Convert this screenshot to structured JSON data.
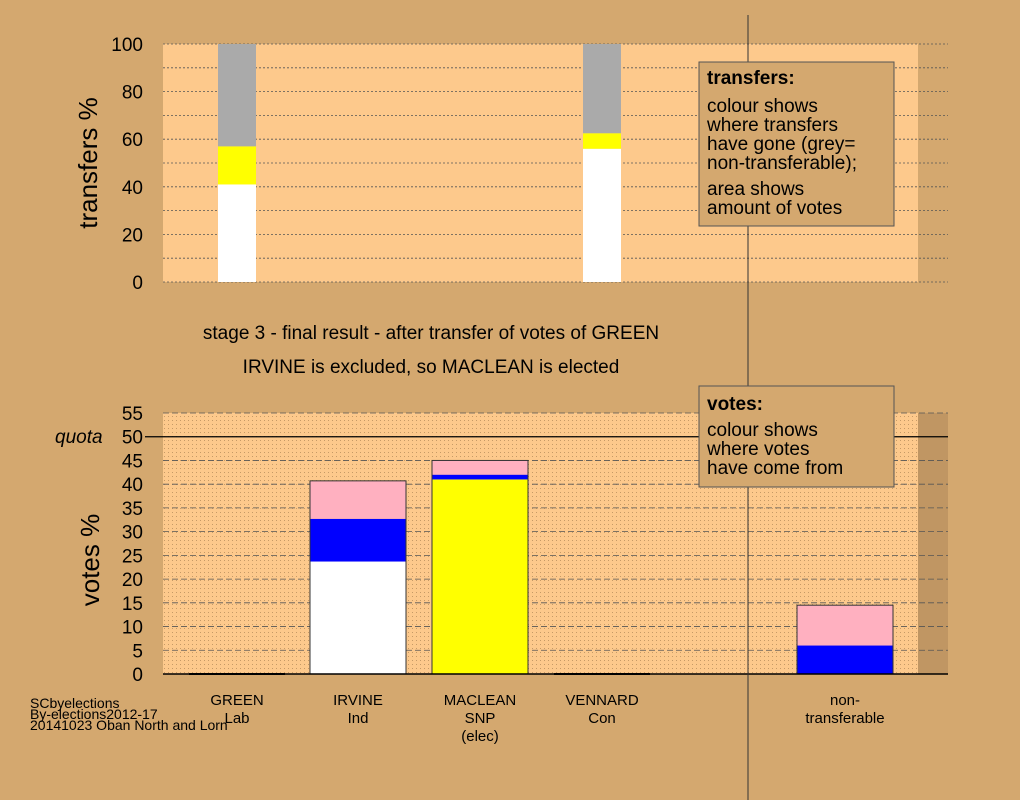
{
  "chart_data": [
    {
      "type": "bar",
      "stacked": true,
      "ylabel": "transfers %",
      "ylim": [
        0,
        100
      ],
      "yticks": [
        0,
        20,
        40,
        60,
        80,
        100
      ],
      "grid": true,
      "bars": [
        {
          "category": "GREEN",
          "segments": [
            {
              "color": "#ffffff",
              "value": 41
            },
            {
              "color": "#ffff00",
              "value": 16
            },
            {
              "color": "#aaaaaa",
              "value": 43
            }
          ]
        },
        {
          "category": "VENNARD",
          "segments": [
            {
              "color": "#ffffff",
              "value": 56
            },
            {
              "color": "#ffff00",
              "value": 6.5
            },
            {
              "color": "#aaaaaa",
              "value": 37.5
            }
          ]
        }
      ]
    },
    {
      "type": "bar",
      "stacked": true,
      "ylabel": "votes %",
      "ylim": [
        0,
        55
      ],
      "yticks": [
        0,
        5,
        10,
        15,
        20,
        25,
        30,
        35,
        40,
        45,
        50,
        55
      ],
      "quota": 50,
      "quota_label": "quota",
      "grid": true,
      "bars": [
        {
          "category": "GREEN",
          "segments": []
        },
        {
          "category": "IRVINE",
          "segments": [
            {
              "color": "#ffffff",
              "value": 23.7
            },
            {
              "color": "#0000ff",
              "value": 9
            },
            {
              "color": "#ffb0c0",
              "value": 8
            }
          ]
        },
        {
          "category": "MACLEAN",
          "segments": [
            {
              "color": "#ffff00",
              "value": 41
            },
            {
              "color": "#0000ff",
              "value": 1
            },
            {
              "color": "#ffb0c0",
              "value": 3
            }
          ]
        },
        {
          "category": "VENNARD",
          "segments": []
        },
        {
          "category": "non-transferable",
          "segments": [
            {
              "color": "#0000ff",
              "value": 6
            },
            {
              "color": "#ffb0c0",
              "value": 8.5
            }
          ]
        }
      ]
    }
  ],
  "categories": [
    {
      "name": "GREEN",
      "lines": [
        "GREEN",
        "Lab"
      ]
    },
    {
      "name": "IRVINE",
      "lines": [
        "IRVINE",
        "Ind"
      ]
    },
    {
      "name": "MACLEAN",
      "lines": [
        "MACLEAN",
        "SNP",
        "(elec)"
      ]
    },
    {
      "name": "VENNARD",
      "lines": [
        "VENNARD",
        "Con"
      ]
    },
    {
      "name": "non-transferable",
      "lines": [
        "non-",
        "transferable"
      ]
    }
  ],
  "stage_line1": "stage 3 - final result - after transfer of votes of GREEN",
  "stage_line2": "IRVINE is excluded, so MACLEAN is elected",
  "transfers_box": {
    "title": "transfers:",
    "lines": [
      "colour shows",
      "where transfers",
      "have gone (grey=",
      "non-transferable);"
    ],
    "lines2": [
      "area shows",
      "amount of votes"
    ]
  },
  "votes_box": {
    "title": "votes:",
    "lines": [
      "colour shows",
      "where votes",
      "have come from"
    ]
  },
  "credit": [
    "SCbyelections",
    "By-elections2012-17",
    "20141023 Oban North and Lorn"
  ],
  "colors": {
    "background": "#d4a86f",
    "plot_background": "#fdc98c",
    "white": "#ffffff",
    "yellow": "#ffff00",
    "grey": "#aaaaaa",
    "blue": "#0000ff",
    "pink": "#ffb0c0",
    "navy": "#000080"
  }
}
